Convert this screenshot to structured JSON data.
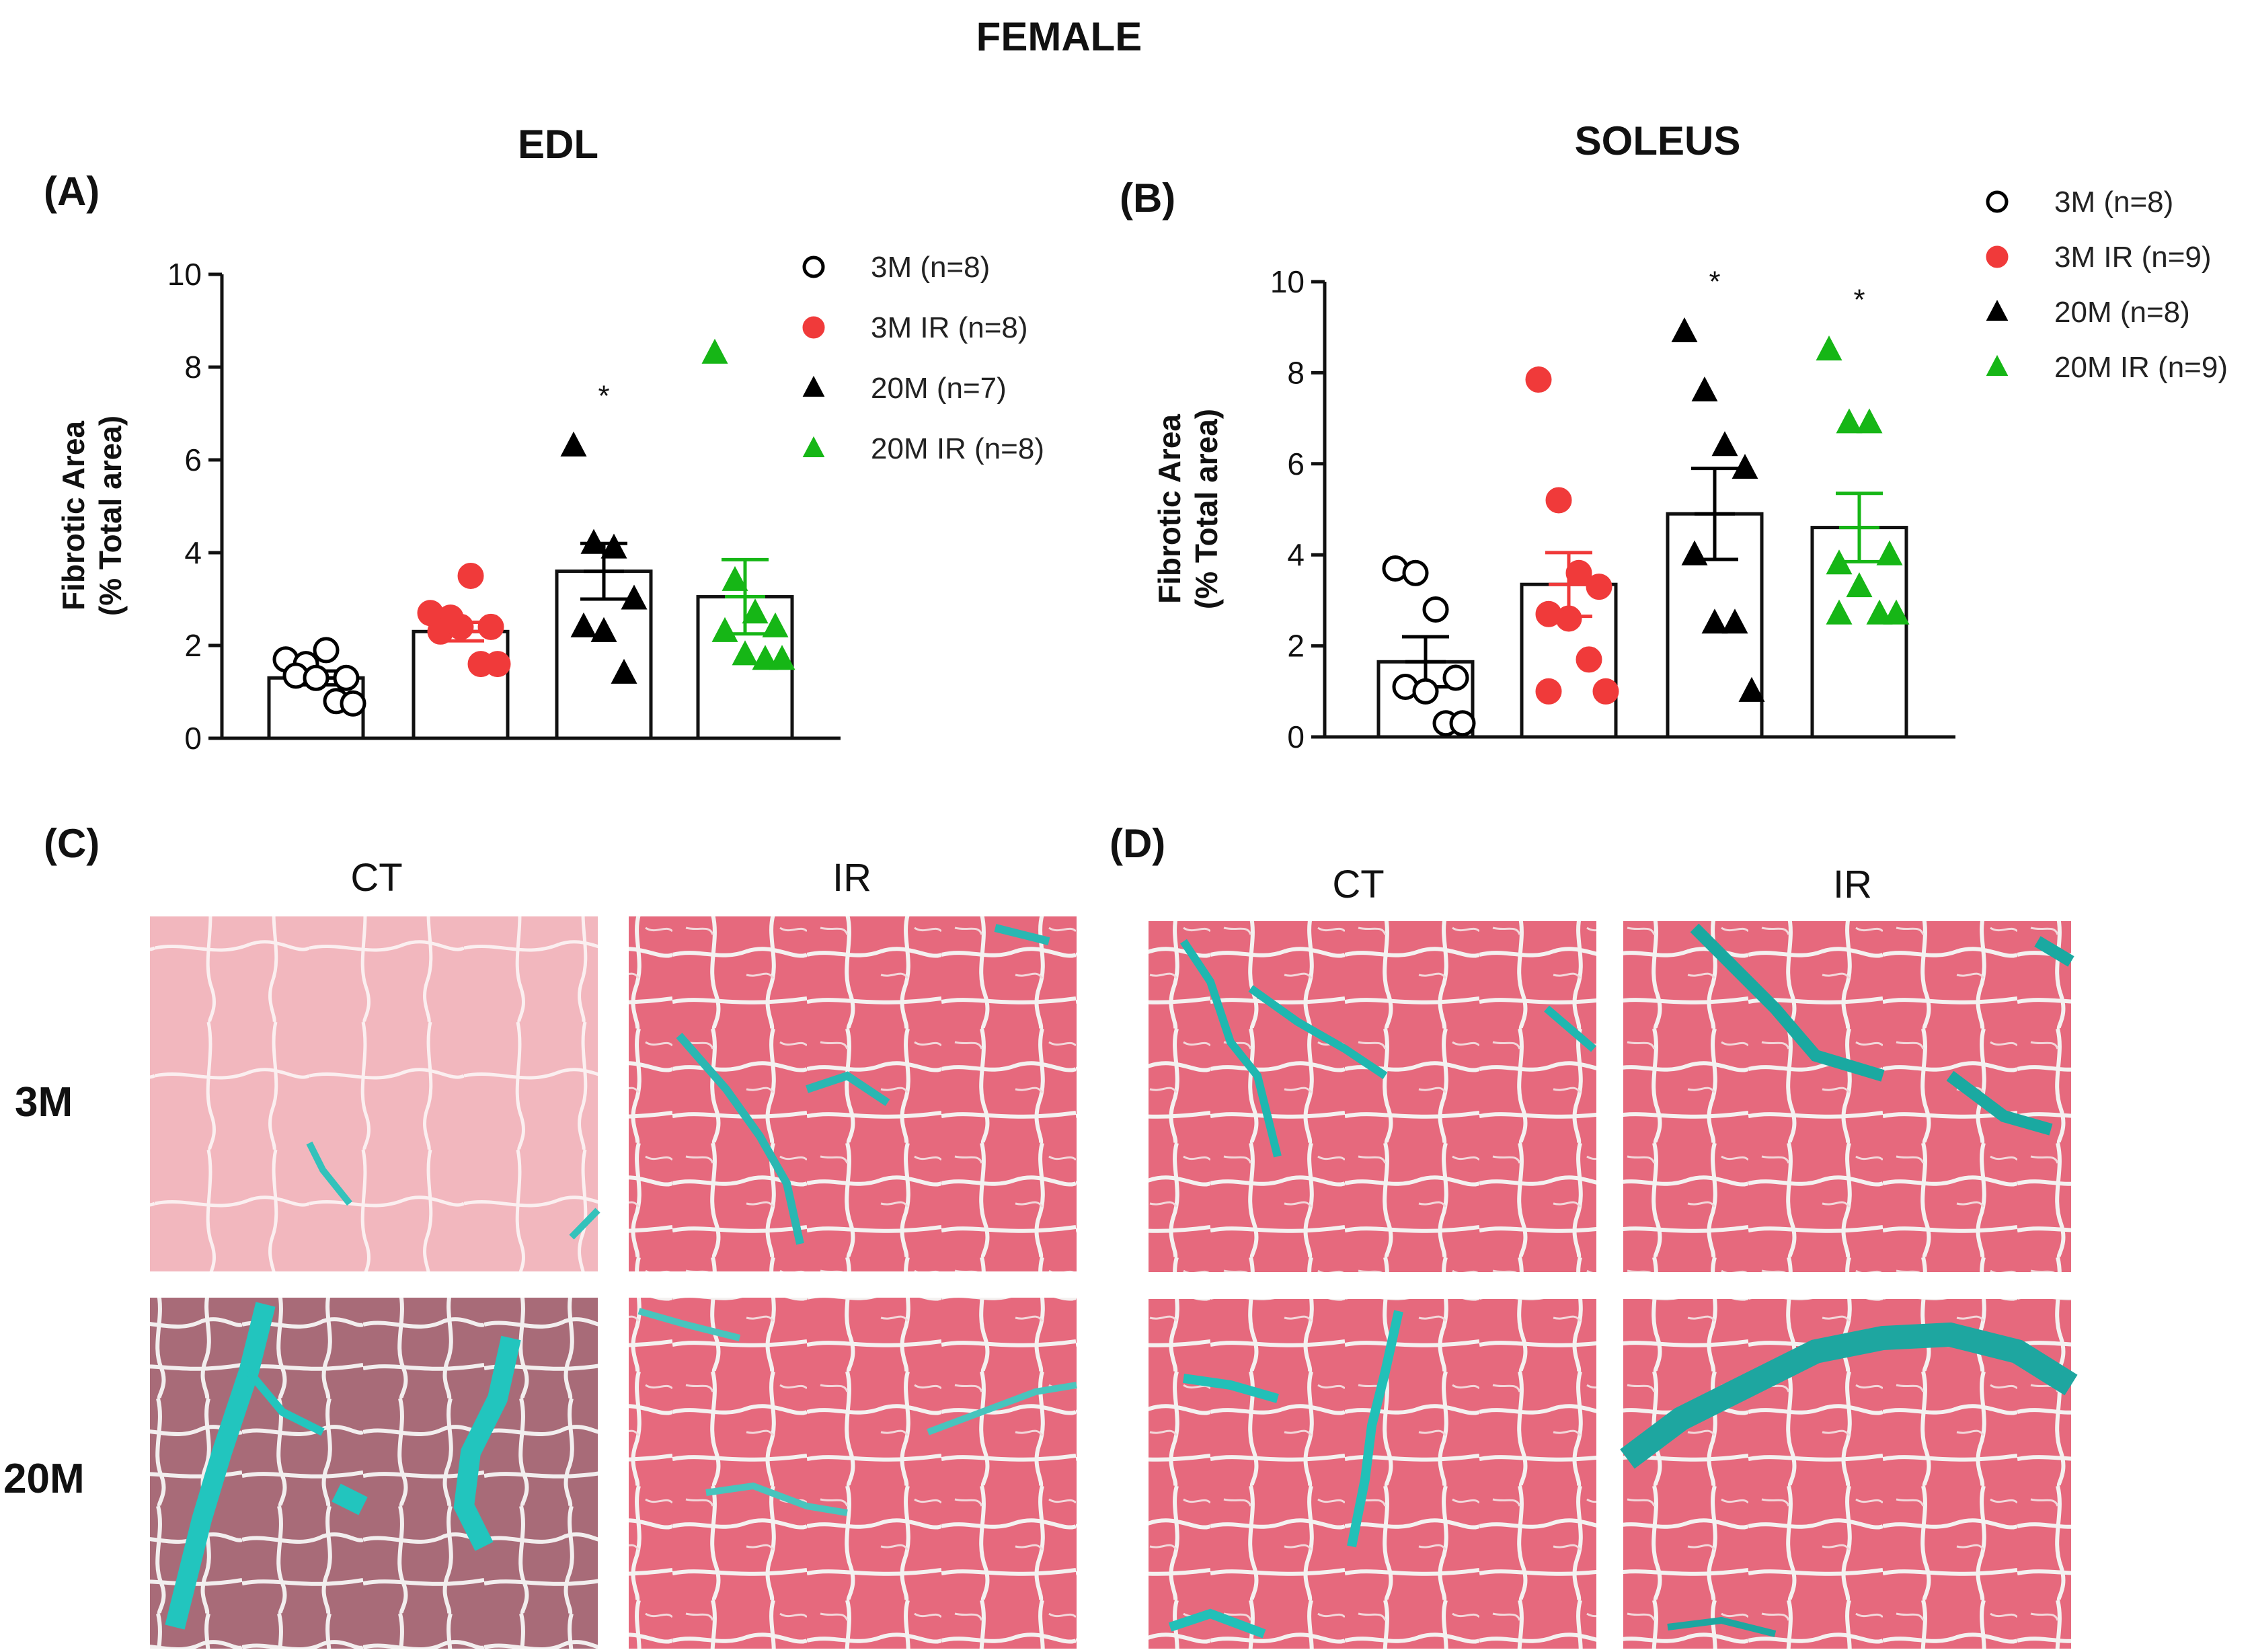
{
  "figure_title": "FEMALE",
  "colors": {
    "ct_3m": "#ffffff",
    "ir_3m": "#f03a3a",
    "ct_20m": "#000000",
    "ir_20m": "#16b616",
    "muscle_pink": "#e6697d",
    "collagen_teal": "#2ab7b2",
    "aged_mauve": "#a86b78",
    "pale_pink": "#f2b7be"
  },
  "chart_data": [
    {
      "panel": "(A)",
      "type": "bar",
      "title": "EDL",
      "ylabel_line1": "Fibrotic Area",
      "ylabel_line2": "(% Total area)",
      "ylim": [
        0,
        10
      ],
      "yticks": [
        "0",
        "2",
        "4",
        "6",
        "8",
        "10"
      ],
      "categories": [
        "3M",
        "3M IR",
        "20M",
        "20M IR"
      ],
      "legend": [
        "3M (n=8)",
        "3M IR (n=8)",
        "20M (n=7)",
        "20M IR (n=8)"
      ],
      "series": [
        {
          "name": "3M",
          "mean": 1.3,
          "sem": 0.15,
          "points": [
            1.7,
            1.6,
            1.9,
            1.3,
            1.35,
            1.3,
            0.8,
            0.75
          ],
          "significance": ""
        },
        {
          "name": "3M IR",
          "mean": 2.3,
          "sem": 0.2,
          "points": [
            2.7,
            2.6,
            3.5,
            2.4,
            2.3,
            2.4,
            1.6,
            1.6
          ],
          "significance": ""
        },
        {
          "name": "20M",
          "mean": 3.6,
          "sem": 0.6,
          "points": [
            6.3,
            4.2,
            4.1,
            3.0,
            2.4,
            2.3,
            1.4
          ],
          "significance": "*"
        },
        {
          "name": "20M IR",
          "mean": 3.05,
          "sem": 0.8,
          "points": [
            8.3,
            3.4,
            2.7,
            2.4,
            2.3,
            1.8,
            1.7,
            1.7
          ],
          "significance": ""
        }
      ]
    },
    {
      "panel": "(B)",
      "type": "bar",
      "title": "SOLEUS",
      "ylabel_line1": "Fibrotic Area",
      "ylabel_line2": "(% Total area)",
      "ylim": [
        0,
        10
      ],
      "yticks": [
        "0",
        "2",
        "4",
        "6",
        "8",
        "10"
      ],
      "categories": [
        "3M",
        "3M IR",
        "20M",
        "20M IR"
      ],
      "legend": [
        "3M (n=8)",
        "3M IR (n=9)",
        "20M (n=8)",
        "20M IR (n=9)"
      ],
      "series": [
        {
          "name": "3M",
          "mean": 1.65,
          "sem": 0.55,
          "points": [
            3.7,
            3.6,
            2.8,
            1.3,
            1.1,
            1.0,
            0.3,
            0.3
          ],
          "significance": ""
        },
        {
          "name": "3M IR",
          "mean": 3.35,
          "sem": 0.7,
          "points": [
            7.85,
            5.2,
            3.6,
            3.3,
            2.7,
            2.6,
            1.7,
            1.0,
            1.0
          ],
          "significance": ""
        },
        {
          "name": "20M",
          "mean": 4.9,
          "sem": 1.0,
          "points": [
            8.9,
            7.6,
            6.4,
            5.9,
            4.0,
            2.5,
            2.5,
            1.0
          ],
          "significance": "*"
        },
        {
          "name": "20M IR",
          "mean": 4.6,
          "sem": 0.75,
          "points": [
            8.5,
            6.9,
            6.9,
            4.0,
            3.8,
            3.3,
            2.7,
            2.7,
            2.7
          ],
          "significance": "*"
        }
      ]
    }
  ],
  "histology": {
    "panel_c_label": "(C)",
    "panel_d_label": "(D)",
    "col_ct": "CT",
    "col_ir": "IR",
    "row_3m": "3M",
    "row_20m": "20M"
  }
}
